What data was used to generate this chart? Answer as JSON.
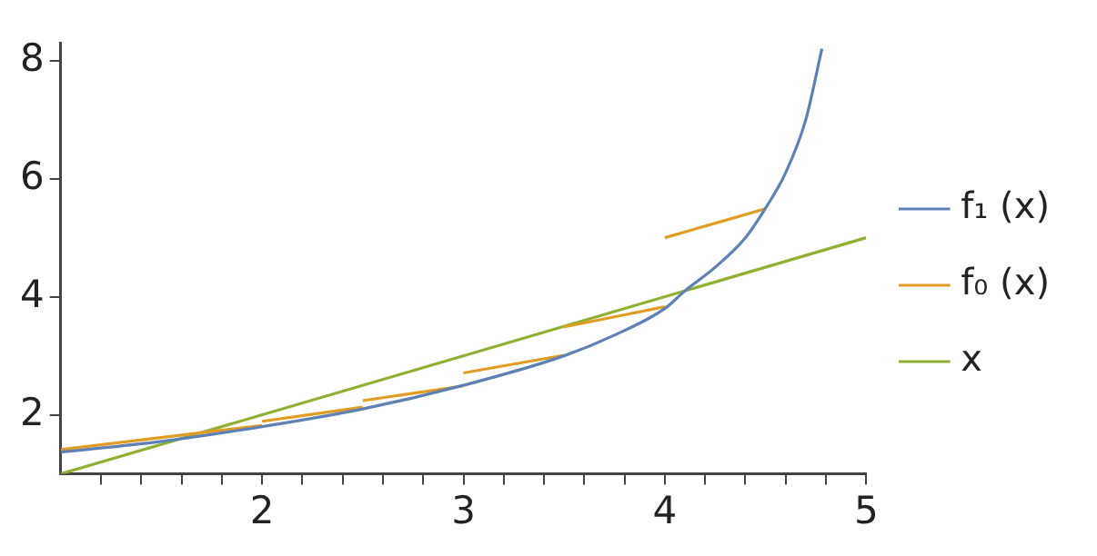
{
  "chart_data": {
    "type": "line",
    "xlim": [
      1,
      5
    ],
    "ylim": [
      1,
      8.3
    ],
    "xticks": [
      {
        "value": 1.2,
        "label": null
      },
      {
        "value": 1.4,
        "label": null
      },
      {
        "value": 1.6,
        "label": null
      },
      {
        "value": 1.8,
        "label": null
      },
      2,
      {
        "value": 2.2,
        "label": null
      },
      {
        "value": 2.4,
        "label": null
      },
      {
        "value": 2.6,
        "label": null
      },
      {
        "value": 2.8,
        "label": null
      },
      3,
      {
        "value": 3.2,
        "label": null
      },
      {
        "value": 3.4,
        "label": null
      },
      {
        "value": 3.6,
        "label": null
      },
      {
        "value": 3.8,
        "label": null
      },
      4,
      {
        "value": 4.2,
        "label": null
      },
      {
        "value": 4.4,
        "label": null
      },
      {
        "value": 4.6,
        "label": null
      },
      {
        "value": 4.8,
        "label": null
      },
      5
    ],
    "yticks": [
      2,
      4,
      6,
      8
    ],
    "grid": false,
    "legend": "right",
    "marker": "none",
    "line_style": "solid",
    "series": [
      {
        "name": "f₁ (x)",
        "color": "#5e81b5",
        "x": [
          1,
          1.5,
          2,
          2.5,
          3,
          3.5,
          3.75,
          4,
          4.1,
          4.25,
          4.4,
          4.5,
          4.6,
          4.7,
          4.78
        ],
        "values": [
          1.37,
          1.55,
          1.8,
          2.1,
          2.5,
          3.0,
          3.35,
          3.8,
          4.1,
          4.5,
          5.0,
          5.5,
          6.1,
          7.0,
          8.2
        ]
      },
      {
        "name": "f₀ (x)",
        "color": "#e19c24",
        "x": [
          1,
          2
        ],
        "values": [
          1.41,
          1.82
        ]
      },
      {
        "color": "#e19c24",
        "x": [
          2,
          2.5
        ],
        "values": [
          1.89,
          2.13
        ]
      },
      {
        "color": "#e19c24",
        "x": [
          2.5,
          3
        ],
        "values": [
          2.24,
          2.49
        ]
      },
      {
        "color": "#e19c24",
        "x": [
          3,
          3.5
        ],
        "values": [
          2.71,
          3.01
        ]
      },
      {
        "color": "#e19c24",
        "x": [
          3.5,
          4
        ],
        "values": [
          3.49,
          3.83
        ]
      },
      {
        "color": "#e19c24",
        "x": [
          4,
          4.5
        ],
        "values": [
          5.0,
          5.49
        ]
      },
      {
        "name": "x",
        "color": "#8fb032",
        "x": [
          1,
          5
        ],
        "values": [
          1,
          5
        ]
      }
    ]
  }
}
